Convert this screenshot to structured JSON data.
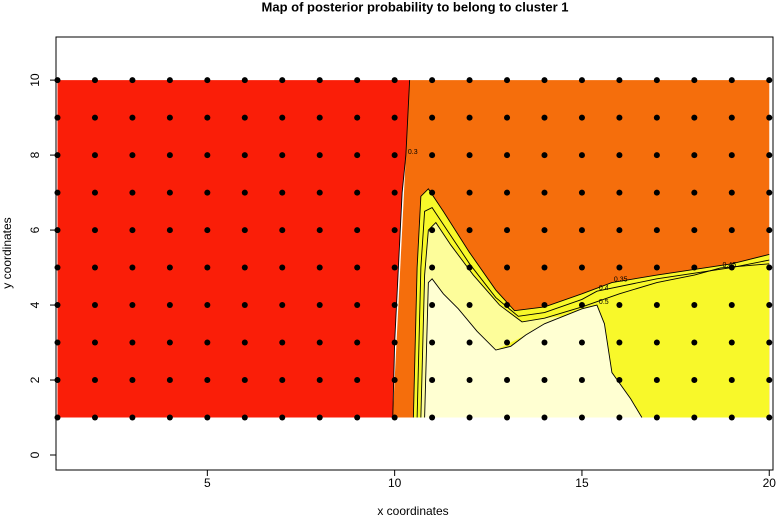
{
  "chart_data": {
    "type": "contour",
    "title": "Map of posterior probability to belong to cluster  1",
    "xlabel": "x coordinates",
    "ylabel": "y coordinates",
    "xlim": [
      0.96,
      20.1
    ],
    "ylim": [
      -0.4,
      11.15
    ],
    "xticks": [
      5,
      10,
      15,
      20
    ],
    "yticks": [
      0,
      2,
      4,
      6,
      8,
      10
    ],
    "regions": [
      {
        "color": "#fa1e08",
        "x": [
          1,
          1,
          10.4,
          10.35,
          10.3,
          10.2,
          10.1,
          10,
          9.95
        ],
        "y": [
          1,
          10,
          10,
          9,
          8,
          7,
          5,
          3,
          1
        ]
      },
      {
        "color": "#f56e0c",
        "x": [
          9.95,
          10.4,
          20,
          20
        ],
        "y": [
          1,
          10,
          10,
          1
        ]
      },
      {
        "color": "#f8f82a",
        "x": [
          10.5,
          10.6,
          10.7,
          10.9,
          11.3,
          12,
          12.7,
          13.2,
          14,
          15,
          15.8,
          17,
          18,
          19,
          20,
          20
        ],
        "y": [
          1,
          5,
          6.9,
          7.1,
          6.5,
          5.4,
          4.4,
          3.85,
          3.95,
          4.3,
          4.6,
          4.8,
          4.95,
          5.1,
          5.35,
          1
        ]
      },
      {
        "color": "#fdfd9a",
        "x": [
          10.7,
          10.8,
          10.9,
          11.1,
          11.5,
          12.1,
          12.8,
          13.4,
          14,
          14.5,
          13.5,
          12.7,
          12,
          11.3,
          10.8
        ],
        "y": [
          1,
          4.8,
          6,
          6.2,
          5.6,
          4.8,
          4,
          3.55,
          3.65,
          3.7,
          3.2,
          2.8,
          3.3,
          4.3,
          1
        ]
      },
      {
        "color": "#ffffd2",
        "x": [
          10.8,
          10.9,
          11,
          11.3,
          11.7,
          12.2,
          12.7,
          13.1,
          13.5,
          14,
          15,
          15.4,
          15.6,
          15.8,
          16.3,
          16.6
        ],
        "y": [
          1,
          4.6,
          4.7,
          4.3,
          3.9,
          3.3,
          2.8,
          2.9,
          3.2,
          3.5,
          3.9,
          4,
          3.5,
          2.2,
          1.5,
          1
        ]
      }
    ],
    "contours": [
      {
        "level": 0.3,
        "x": [
          10.4,
          10.35,
          10.3,
          10.2,
          10.1,
          10,
          9.95
        ],
        "y": [
          10,
          9,
          8,
          7,
          5,
          3,
          1
        ]
      },
      {
        "level": 0.35,
        "x": [
          10.5,
          10.6,
          10.7,
          10.9,
          11.3,
          12,
          12.7,
          13.2,
          14,
          15,
          15.8,
          17,
          18,
          19,
          20
        ],
        "y": [
          1,
          5,
          6.9,
          7.1,
          6.5,
          5.4,
          4.4,
          3.85,
          3.95,
          4.3,
          4.6,
          4.8,
          4.95,
          5.1,
          5.35
        ]
      },
      {
        "level": 0.4,
        "x": [
          10.6,
          10.7,
          10.8,
          11,
          11.4,
          12,
          12.7,
          13.3,
          14,
          15,
          15.4,
          17,
          18,
          19,
          20
        ],
        "y": [
          1,
          5,
          6.5,
          6.6,
          6,
          5.1,
          4.2,
          3.7,
          3.8,
          4.15,
          4.37,
          4.7,
          4.85,
          5,
          5.2
        ]
      },
      {
        "level": 0.45,
        "x": [
          10.7,
          10.8,
          10.9,
          11.1,
          11.5,
          12.1,
          12.8,
          13.4,
          14,
          15,
          16,
          17,
          18,
          18.7,
          20
        ],
        "y": [
          1,
          4.8,
          6,
          6.2,
          5.6,
          4.8,
          4,
          3.55,
          3.65,
          3.95,
          4.3,
          4.6,
          4.8,
          4.99,
          5.1
        ]
      },
      {
        "level": 0.5,
        "x": [
          10.8,
          10.9,
          11,
          11.3,
          11.7,
          12.2,
          12.7,
          13.1,
          13.5,
          14,
          15,
          15.4,
          15.6,
          15.8,
          16.3,
          16.6
        ],
        "y": [
          1,
          4.6,
          4.7,
          4.3,
          3.9,
          3.3,
          2.8,
          2.9,
          3.2,
          3.5,
          3.9,
          4,
          3.5,
          2.2,
          1.5,
          1
        ]
      }
    ],
    "points": {
      "color": "#000000",
      "x": [
        1,
        2,
        3,
        4,
        5,
        6,
        7,
        8,
        9,
        10,
        11,
        12,
        13,
        14,
        15,
        16,
        17,
        18,
        19,
        20
      ],
      "y": [
        1,
        2,
        3,
        4,
        5,
        6,
        7,
        8,
        9,
        10
      ]
    }
  }
}
